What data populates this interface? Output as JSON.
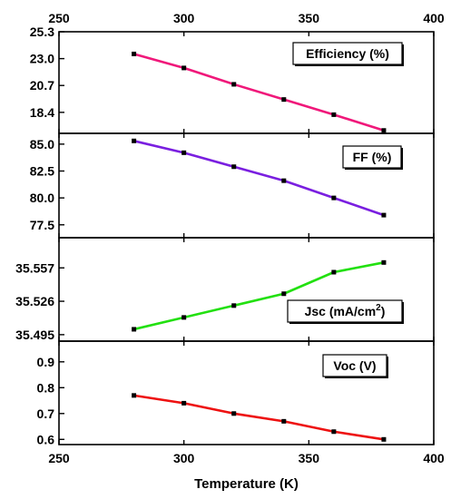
{
  "chart_data": {
    "type": "line",
    "xlabel": "Temperature (K)",
    "x_ticks": [
      "250",
      "300",
      "350",
      "400"
    ],
    "xlim": [
      250,
      400
    ],
    "x": [
      280,
      300,
      320,
      340,
      360,
      380
    ],
    "panels": [
      {
        "id": "efficiency",
        "label_main": "Efficiency (%)",
        "label_sup": "",
        "label_tail": "",
        "color": "#f0187a",
        "ylim": [
          16.6,
          25.3
        ],
        "y_ticks": [
          "25.3",
          "23.0",
          "20.7",
          "18.4"
        ],
        "values": [
          23.4,
          22.2,
          20.8,
          19.5,
          18.2,
          16.85
        ]
      },
      {
        "id": "ff",
        "label_main": "FF (%)",
        "label_sup": "",
        "label_tail": "",
        "color": "#7a1fe0",
        "ylim": [
          76.3,
          86.0
        ],
        "y_ticks": [
          "85.0",
          "82.5",
          "80.0",
          "77.5"
        ],
        "values": [
          85.3,
          84.2,
          82.9,
          81.6,
          80.0,
          78.4
        ]
      },
      {
        "id": "jsc",
        "label_main": "Jsc (mA/cm",
        "label_sup": "2",
        "label_tail": ")",
        "color": "#22e010",
        "ylim": [
          35.489,
          35.585
        ],
        "y_ticks": [
          "35.557",
          "35.526",
          "35.495"
        ],
        "values": [
          35.5,
          35.511,
          35.522,
          35.533,
          35.553,
          35.562
        ]
      },
      {
        "id": "voc",
        "label_main": "Voc (V)",
        "label_sup": "",
        "label_tail": "",
        "color": "#ee1111",
        "ylim": [
          0.58,
          0.98
        ],
        "y_ticks": [
          "0.9",
          "0.8",
          "0.7",
          "0.6"
        ],
        "values": [
          0.77,
          0.74,
          0.7,
          0.67,
          0.63,
          0.6
        ]
      }
    ]
  }
}
